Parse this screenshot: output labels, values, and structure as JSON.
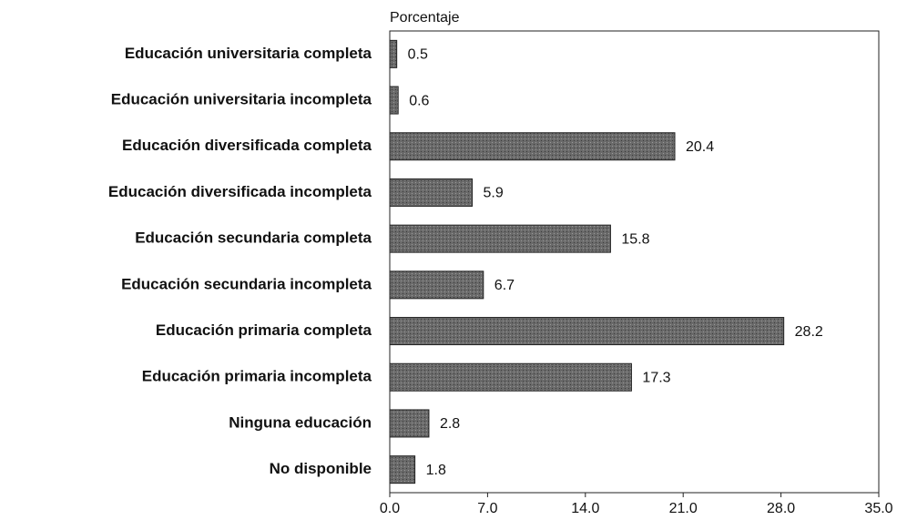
{
  "chart_data": {
    "type": "barh",
    "xlabel": "Porcentaje",
    "categories": [
      "Educación universitaria completa",
      "Educación universitaria incompleta",
      "Educación diversificada completa",
      "Educación diversificada incompleta",
      "Educación secundaria completa",
      "Educación secundaria incompleta",
      "Educación primaria completa",
      "Educación primaria incompleta",
      "Ninguna educación",
      "No disponible"
    ],
    "values": [
      0.5,
      0.6,
      20.4,
      5.9,
      15.8,
      6.7,
      28.2,
      17.3,
      2.8,
      1.8
    ],
    "color": "#5e5e5e",
    "xlim": [
      0,
      35
    ],
    "xticks": [
      {
        "value": 0,
        "label": "0.0"
      },
      {
        "value": 7,
        "label": "7.0"
      },
      {
        "value": 14,
        "label": "14.0"
      },
      {
        "value": 21,
        "label": "21.0"
      },
      {
        "value": 28,
        "label": "28.0"
      },
      {
        "value": 35,
        "label": "35.0"
      }
    ]
  }
}
